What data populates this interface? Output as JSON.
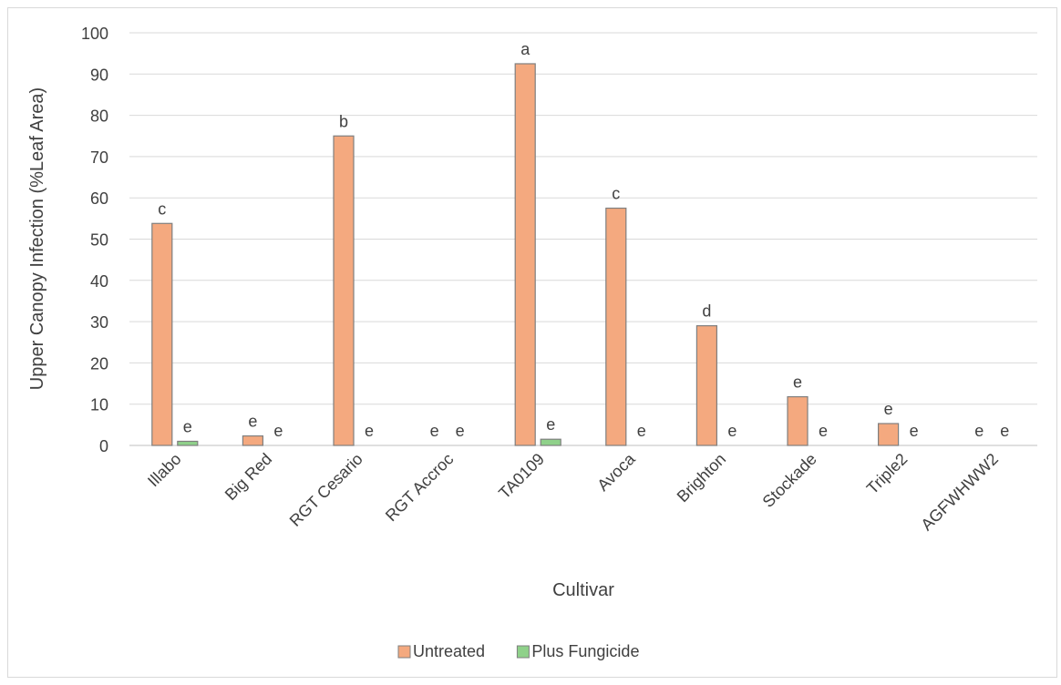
{
  "chart_data": {
    "type": "bar",
    "title": "",
    "xlabel": "Cultivar",
    "ylabel": "Upper Canopy Infection (%Leaf Area)",
    "ylim": [
      0,
      100
    ],
    "yticks": [
      0,
      10,
      20,
      30,
      40,
      50,
      60,
      70,
      80,
      90,
      100
    ],
    "grid": true,
    "legend_position": "bottom",
    "categories": [
      "Illabo",
      "Big Red",
      "RGT Cesario",
      "RGT Accroc",
      "TA0109",
      "Avoca",
      "Brighton",
      "Stockade",
      "Triple2",
      "AGFWHWW2"
    ],
    "series": [
      {
        "name": "Untreated",
        "color": "#f4a97f",
        "values": [
          53.8,
          2.3,
          75.0,
          0,
          92.5,
          57.5,
          29.0,
          11.8,
          5.3,
          0
        ],
        "labels": [
          "c",
          "e",
          "b",
          "e",
          "a",
          "c",
          "d",
          "e",
          "e",
          "e"
        ]
      },
      {
        "name": "Plus Fungicide",
        "color": "#8fd18a",
        "values": [
          1.0,
          0,
          0,
          0,
          1.5,
          0,
          0,
          0,
          0,
          0
        ],
        "labels": [
          "e",
          "e",
          "e",
          "e",
          "e",
          "e",
          "e",
          "e",
          "e",
          "e"
        ]
      }
    ]
  }
}
